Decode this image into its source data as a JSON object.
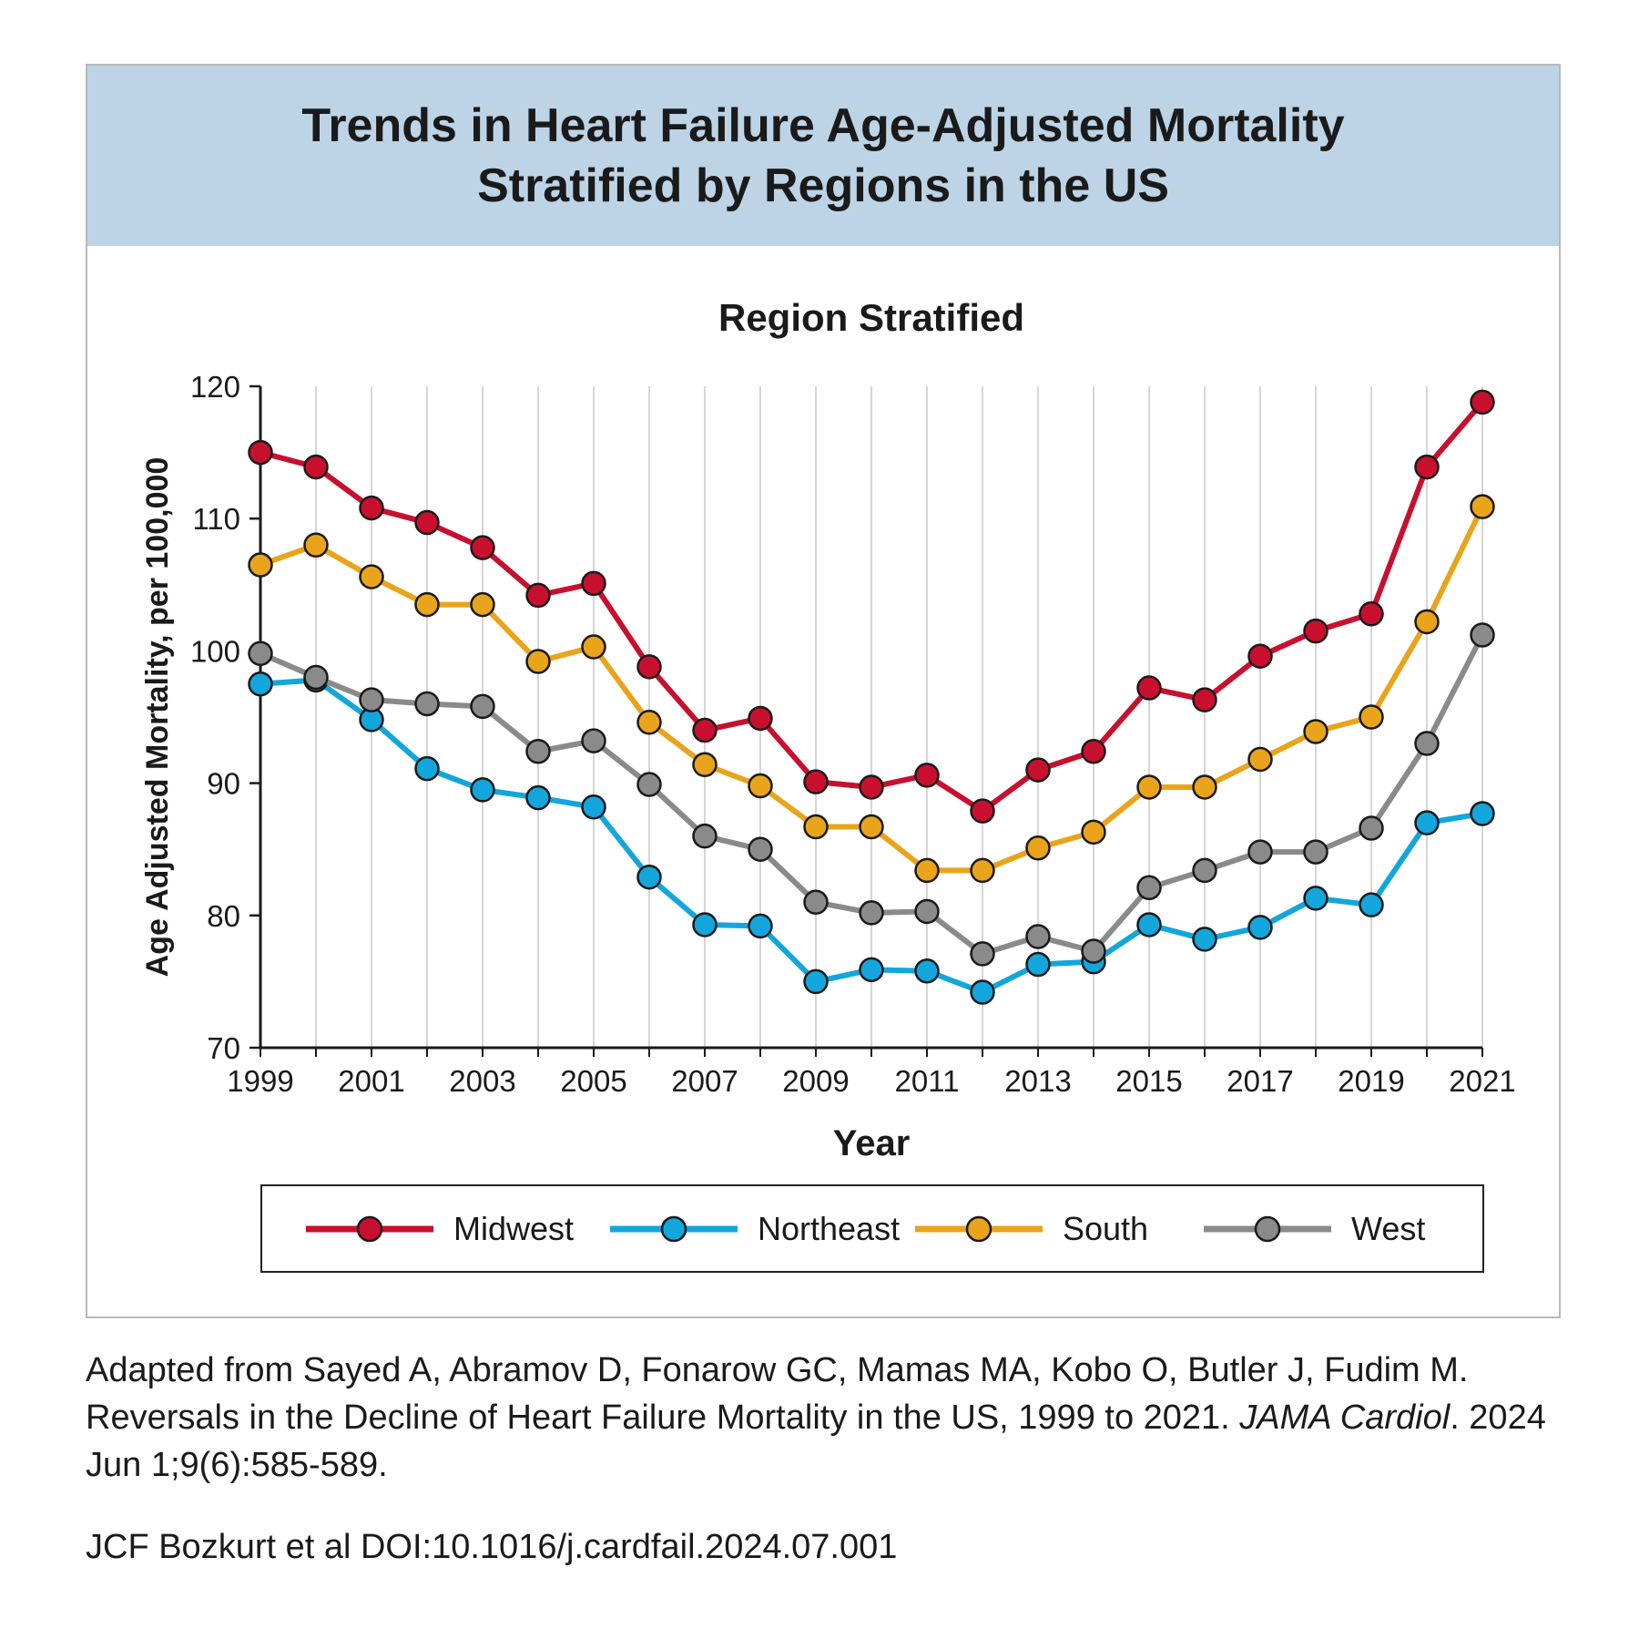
{
  "header": {
    "title_line1": "Trends in Heart Failure Age-Adjusted Mortality",
    "title_line2": "Stratified by Regions in the US"
  },
  "chart_data": {
    "type": "line",
    "title": "Region Stratified",
    "xlabel": "Year",
    "ylabel": "Age Adjusted Mortality, per 100,000",
    "ylim": [
      70,
      120
    ],
    "yticks": [
      70,
      80,
      90,
      100,
      110,
      120
    ],
    "xlim": [
      1999,
      2021
    ],
    "xticks": [
      1999,
      2001,
      2003,
      2005,
      2007,
      2009,
      2011,
      2013,
      2015,
      2017,
      2019,
      2021
    ],
    "grid": "vertical",
    "legend_position": "bottom",
    "x": [
      1999,
      2000,
      2001,
      2002,
      2003,
      2004,
      2005,
      2006,
      2007,
      2008,
      2009,
      2010,
      2011,
      2012,
      2013,
      2014,
      2015,
      2016,
      2017,
      2018,
      2019,
      2020,
      2021
    ],
    "series": [
      {
        "name": "Midwest",
        "color": "#c8102e",
        "values": [
          115.0,
          113.9,
          110.8,
          109.7,
          107.8,
          104.2,
          105.1,
          98.8,
          94.0,
          94.9,
          90.1,
          89.7,
          90.6,
          87.9,
          91.0,
          92.4,
          97.2,
          96.3,
          99.6,
          101.5,
          102.8,
          113.9,
          118.8
        ]
      },
      {
        "name": "Northeast",
        "color": "#12a6dc",
        "values": [
          97.5,
          97.8,
          94.8,
          91.1,
          89.5,
          88.9,
          88.2,
          82.9,
          79.3,
          79.2,
          75.0,
          75.9,
          75.8,
          74.2,
          76.3,
          76.5,
          79.3,
          78.2,
          79.1,
          81.3,
          80.8,
          87.0,
          87.7
        ]
      },
      {
        "name": "South",
        "color": "#eaa41b",
        "values": [
          106.5,
          108.0,
          105.6,
          103.5,
          103.5,
          99.2,
          100.3,
          94.6,
          91.4,
          89.8,
          86.7,
          86.7,
          83.4,
          83.4,
          85.1,
          86.3,
          89.7,
          89.7,
          91.8,
          93.9,
          95.0,
          102.2,
          110.9
        ]
      },
      {
        "name": "West",
        "color": "#8a8a8a",
        "values": [
          99.8,
          98.0,
          96.3,
          96.0,
          95.8,
          92.4,
          93.2,
          89.9,
          86.0,
          85.0,
          81.0,
          80.2,
          80.3,
          77.1,
          78.4,
          77.3,
          82.1,
          83.4,
          84.8,
          84.8,
          86.6,
          93.0,
          101.2
        ]
      }
    ]
  },
  "caption": {
    "line1": "Adapted from Sayed A, Abramov D, Fonarow GC, Mamas MA, Kobo O, Butler J, Fudim M.",
    "line2_pre": "Reversals in the Decline of Heart Failure Mortality in the US, 1999 to 2021. ",
    "journal": "JAMA Cardiol",
    "line2_post": ". 2024",
    "line3": "Jun 1;9(6):585-589.",
    "doi": "JCF Bozkurt et al  DOI:10.1016/j.cardfail.2024.07.001"
  }
}
